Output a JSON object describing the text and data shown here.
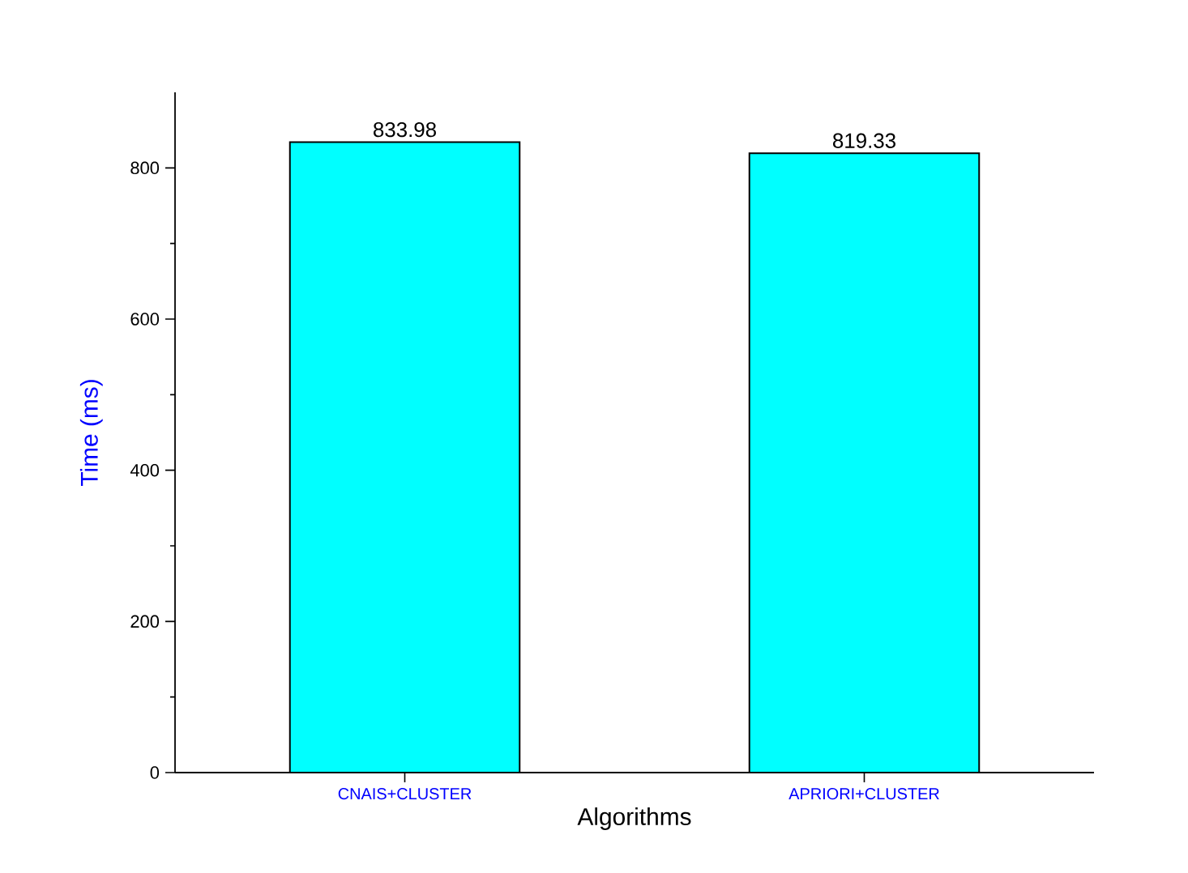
{
  "chart_data": {
    "type": "bar",
    "xlabel": "Algorithms",
    "ylabel": "Time (ms)",
    "categories": [
      "CNAIS+CLUSTER",
      "APRIORI+CLUSTER"
    ],
    "values": [
      833.98,
      819.33
    ],
    "color": "#00ffff",
    "ylim": [
      0,
      900
    ],
    "yticks": [
      0,
      200,
      400,
      600,
      800
    ],
    "data_labels": true,
    "grid": false,
    "legend": false
  }
}
